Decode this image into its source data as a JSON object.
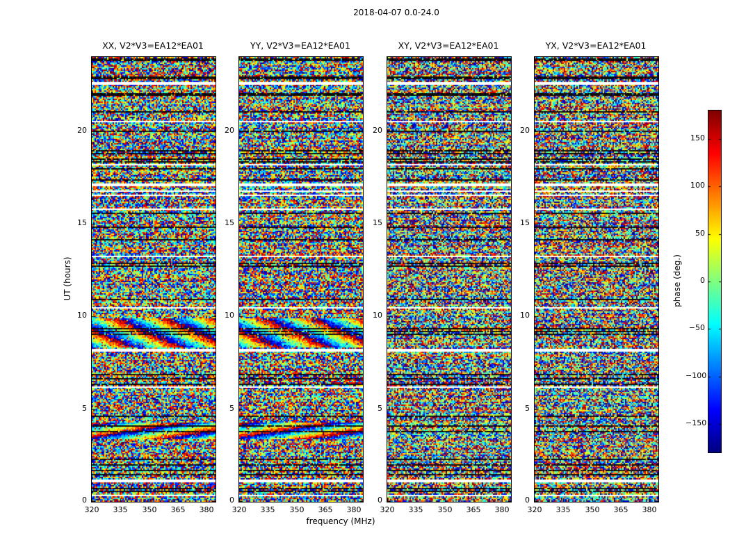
{
  "chart_data": {
    "type": "heatmap",
    "title": "2018-04-07 0.0-24.0",
    "xlabel": "frequency (MHz)",
    "ylabel": "UT (hours)",
    "colorbar_label": "phase (deg.)",
    "colormap": "jet",
    "x_range": [
      320,
      384.7
    ],
    "y_range": [
      0,
      24
    ],
    "x_ticks": [
      320,
      335,
      350,
      365,
      380
    ],
    "y_ticks": [
      0,
      5,
      10,
      15,
      20
    ],
    "color_range": [
      -180,
      180
    ],
    "colorbar_ticks": [
      150,
      100,
      50,
      0,
      -50,
      -100,
      -150
    ],
    "panels": [
      {
        "title": "XX, V2*V3=EA12*EA01"
      },
      {
        "title": "YY, V2*V3=EA12*EA01"
      },
      {
        "title": "XY, V2*V3=EA12*EA01"
      },
      {
        "title": "YX, V2*V3=EA12*EA01"
      }
    ],
    "content": {
      "description": "Waterfall plots of interferometric visibility phase versus frequency (x) and UT time (y) for baseline EA12*EA01 on 2018-04-07. Mostly uniform random phase noise; horizontal white (flagged) and near-black time rows occur at identical times in all four panels. Coherent phase-wrap rainbow bands appear only in the XX and YY panels near UT 3.35-4.3 and UT 8.3-9.9.",
      "white_row_fraction": 0.056,
      "dark_row_fraction": 0.118,
      "coherent_bands": [
        {
          "panels": [
            "XX",
            "YY"
          ],
          "ut_range": [
            8.3,
            9.9
          ],
          "cycles_across_band": 2.5
        },
        {
          "panels": [
            "XX",
            "YY"
          ],
          "ut_range": [
            3.35,
            4.3
          ],
          "cycles_across_band": 1.5
        }
      ]
    }
  }
}
